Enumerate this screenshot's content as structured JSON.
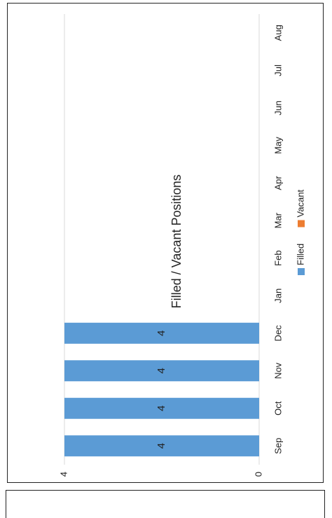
{
  "chart_data": {
    "type": "bar",
    "title": "Filled / Vacant Positions",
    "categories": [
      "Sep",
      "Oct",
      "Nov",
      "Dec",
      "Jan",
      "Feb",
      "Mar",
      "Apr",
      "May",
      "Jun",
      "Jul",
      "Aug"
    ],
    "series": [
      {
        "name": "Filled",
        "values": [
          4,
          4,
          4,
          4,
          null,
          null,
          null,
          null,
          null,
          null,
          null,
          null
        ],
        "color": "#5b9bd5"
      },
      {
        "name": "Vacant",
        "values": [
          null,
          null,
          null,
          null,
          null,
          null,
          null,
          null,
          null,
          null,
          null,
          null
        ],
        "color": "#ed7d31"
      }
    ],
    "ylim": [
      0,
      4
    ],
    "yticks": [
      "0",
      "4"
    ],
    "grid": true,
    "legend": "bottom",
    "orientation": "rotated-90"
  }
}
